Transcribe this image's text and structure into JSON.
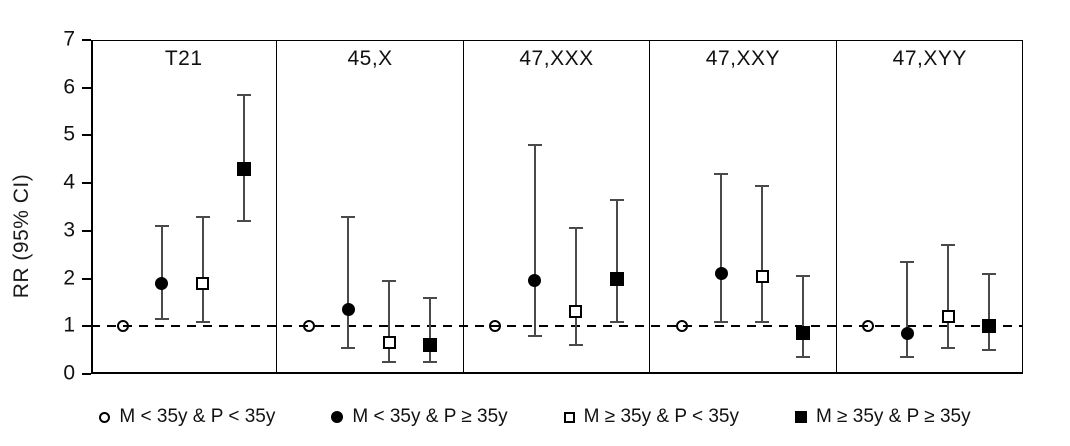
{
  "chart_data": {
    "type": "scatter",
    "subtype": "forest-plot-with-error-bars",
    "title": "",
    "xlabel": "",
    "ylabel": "RR (95% CI)",
    "ylim": [
      0,
      7
    ],
    "yticks": [
      0,
      1,
      2,
      3,
      4,
      5,
      6,
      7
    ],
    "reference_line_y": 1,
    "grid": false,
    "legend_position": "bottom",
    "groups": [
      {
        "label": "M < 35y & P < 35y",
        "marker": "open-circle"
      },
      {
        "label": "M < 35y & P ≥ 35y",
        "marker": "filled-circle"
      },
      {
        "label": "M ≥ 35y & P < 35y",
        "marker": "open-square"
      },
      {
        "label": "M ≥ 35y & P ≥ 35y",
        "marker": "filled-square"
      }
    ],
    "panels": [
      {
        "label": "T21",
        "points": [
          {
            "group": "M < 35y & P < 35y",
            "marker": "open-circle",
            "rr": 1.0,
            "lo": null,
            "hi": null
          },
          {
            "group": "M < 35y & P ≥ 35y",
            "marker": "filled-circle",
            "rr": 1.9,
            "lo": 1.15,
            "hi": 3.1
          },
          {
            "group": "M ≥ 35y & P < 35y",
            "marker": "open-square",
            "rr": 1.9,
            "lo": 1.1,
            "hi": 3.3
          },
          {
            "group": "M ≥ 35y & P ≥ 35y",
            "marker": "filled-square",
            "rr": 4.3,
            "lo": 3.2,
            "hi": 5.85
          }
        ]
      },
      {
        "label": "45,X",
        "points": [
          {
            "group": "M < 35y & P < 35y",
            "marker": "open-circle",
            "rr": 1.0,
            "lo": null,
            "hi": null
          },
          {
            "group": "M < 35y & P ≥ 35y",
            "marker": "filled-circle",
            "rr": 1.35,
            "lo": 0.55,
            "hi": 3.3
          },
          {
            "group": "M ≥ 35y & P < 35y",
            "marker": "open-square",
            "rr": 0.65,
            "lo": 0.25,
            "hi": 1.95
          },
          {
            "group": "M ≥ 35y & P ≥ 35y",
            "marker": "filled-square",
            "rr": 0.6,
            "lo": 0.25,
            "hi": 1.6
          }
        ]
      },
      {
        "label": "47,XXX",
        "points": [
          {
            "group": "M < 35y & P < 35y",
            "marker": "open-circle",
            "rr": 1.0,
            "lo": null,
            "hi": null
          },
          {
            "group": "M < 35y & P ≥ 35y",
            "marker": "filled-circle",
            "rr": 1.95,
            "lo": 0.8,
            "hi": 4.8
          },
          {
            "group": "M ≥ 35y & P < 35y",
            "marker": "open-square",
            "rr": 1.3,
            "lo": 0.6,
            "hi": 3.05
          },
          {
            "group": "M ≥ 35y & P ≥ 35y",
            "marker": "filled-square",
            "rr": 2.0,
            "lo": 1.1,
            "hi": 3.65
          }
        ]
      },
      {
        "label": "47,XXY",
        "points": [
          {
            "group": "M < 35y & P < 35y",
            "marker": "open-circle",
            "rr": 1.0,
            "lo": null,
            "hi": null
          },
          {
            "group": "M < 35y & P ≥ 35y",
            "marker": "filled-circle",
            "rr": 2.1,
            "lo": 1.1,
            "hi": 4.2
          },
          {
            "group": "M ≥ 35y & P < 35y",
            "marker": "open-square",
            "rr": 2.05,
            "lo": 1.1,
            "hi": 3.95
          },
          {
            "group": "M ≥ 35y & P ≥ 35y",
            "marker": "filled-square",
            "rr": 0.85,
            "lo": 0.35,
            "hi": 2.05
          }
        ]
      },
      {
        "label": "47,XYY",
        "points": [
          {
            "group": "M < 35y & P < 35y",
            "marker": "open-circle",
            "rr": 1.0,
            "lo": null,
            "hi": null
          },
          {
            "group": "M < 35y & P ≥ 35y",
            "marker": "filled-circle",
            "rr": 0.85,
            "lo": 0.35,
            "hi": 2.35
          },
          {
            "group": "M ≥ 35y & P < 35y",
            "marker": "open-square",
            "rr": 1.2,
            "lo": 0.55,
            "hi": 2.7
          },
          {
            "group": "M ≥ 35y & P ≥ 35y",
            "marker": "filled-square",
            "rr": 1.0,
            "lo": 0.5,
            "hi": 2.1
          }
        ]
      }
    ],
    "colors": {
      "marker": "#000000",
      "whisker": "#4a4a4a",
      "reference_line": "#000000",
      "frame": "#000000",
      "background": "#ffffff"
    }
  }
}
